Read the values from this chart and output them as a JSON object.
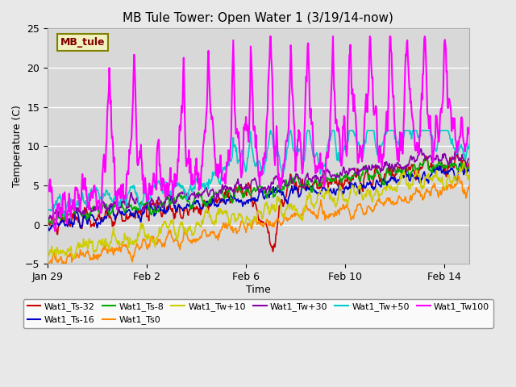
{
  "title": "MB Tule Tower: Open Water 1 (3/19/14-now)",
  "xlabel": "Time",
  "ylabel": "Temperature (C)",
  "ylim": [
    -5,
    25
  ],
  "xlim_days": [
    0,
    17
  ],
  "background_color": "#e8e8e8",
  "plot_bg_color": "#d8d8d8",
  "grid_color": "#ffffff",
  "legend_box_color": "#f0f0c0",
  "legend_box_edge": "#808000",
  "legend_label_color": "#800000",
  "legend_label": "MB_tule",
  "series": [
    {
      "name": "Wat1_Ts-32",
      "color": "#cc0000",
      "lw": 1.2
    },
    {
      "name": "Wat1_Ts-16",
      "color": "#0000cc",
      "lw": 1.2
    },
    {
      "name": "Wat1_Ts-8",
      "color": "#00aa00",
      "lw": 1.2
    },
    {
      "name": "Wat1_Ts0",
      "color": "#ff8800",
      "lw": 1.2
    },
    {
      "name": "Wat1_Tw+10",
      "color": "#cccc00",
      "lw": 1.2
    },
    {
      "name": "Wat1_Tw+30",
      "color": "#8800aa",
      "lw": 1.2
    },
    {
      "name": "Wat1_Tw+50",
      "color": "#00cccc",
      "lw": 1.2
    },
    {
      "name": "Wat1_Tw100",
      "color": "#ff00ff",
      "lw": 1.5
    }
  ],
  "xtick_positions": [
    0,
    4,
    8,
    12,
    16
  ],
  "xtick_labels": [
    "Jan 29",
    "Feb 2",
    "Feb 6",
    "Feb 10",
    "Feb 14"
  ]
}
